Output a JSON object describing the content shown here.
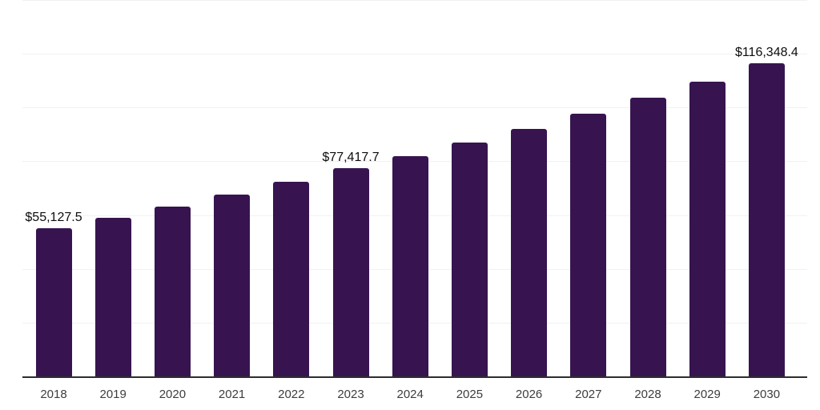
{
  "chart_data": {
    "type": "bar",
    "categories": [
      "2018",
      "2019",
      "2020",
      "2021",
      "2022",
      "2023",
      "2024",
      "2025",
      "2026",
      "2027",
      "2028",
      "2029",
      "2030"
    ],
    "values": [
      55127.5,
      59000,
      63150,
      67580,
      72330,
      77417.7,
      82060,
      86970,
      92190,
      97710,
      103570,
      109770,
      116348.4
    ],
    "data_labels": {
      "2018": "$55,127.5",
      "2023": "$77,417.7",
      "2030": "$116,348.4"
    },
    "title": "",
    "xlabel": "",
    "ylabel": "",
    "ylim": [
      0,
      140000
    ],
    "gridline_step": 20000,
    "grid": true,
    "legend_position": "none",
    "y_tick_labels_visible": false
  },
  "colors": {
    "bar": "#371450",
    "gridline": "#f1f1f1",
    "axis_line": "#2e2e2e",
    "data_label": "#0d0d0d",
    "tick_label": "#3d3d3d",
    "background": "#ffffff"
  }
}
